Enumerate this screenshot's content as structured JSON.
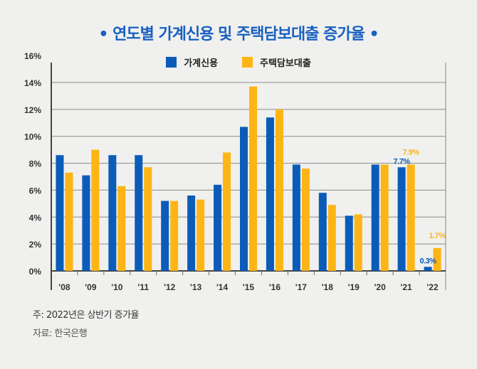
{
  "title": "• 연도별 가계신용 및 주택담보대출 증가율 •",
  "colors": {
    "household_credit": "#0a5cb8",
    "mortgage": "#fdb515",
    "title": "#1860c0"
  },
  "chart_data": {
    "type": "bar",
    "title": "연도별 가계신용 및 주택담보대출 증가율",
    "categories": [
      "'08",
      "'09",
      "'10",
      "'11",
      "'12",
      "'13",
      "'14",
      "'15",
      "'16",
      "'17",
      "'18",
      "'19",
      "'20",
      "'21",
      "'22"
    ],
    "series": [
      {
        "name": "가계신용",
        "color": "#0a5cb8",
        "values": [
          8.6,
          7.1,
          8.6,
          8.6,
          5.2,
          5.6,
          6.4,
          10.7,
          11.4,
          7.9,
          5.8,
          4.1,
          7.9,
          7.7,
          0.3
        ]
      },
      {
        "name": "주택담보대출",
        "color": "#fdb515",
        "values": [
          7.3,
          9.0,
          6.3,
          7.7,
          5.2,
          5.3,
          8.8,
          13.7,
          12.0,
          7.6,
          4.9,
          4.2,
          7.9,
          7.9,
          1.7
        ]
      }
    ],
    "yticks": [
      "0%",
      "2%",
      "4%",
      "6%",
      "8%",
      "10%",
      "12%",
      "14%",
      "16%"
    ],
    "ylim": [
      0,
      16
    ],
    "grid": true,
    "legend": "top",
    "annotations": [
      {
        "category": "'21",
        "series": "가계신용",
        "text": "7.7%"
      },
      {
        "category": "'21",
        "series": "주택담보대출",
        "text": "7.9%"
      },
      {
        "category": "'22",
        "series": "가계신용",
        "text": "0.3%"
      },
      {
        "category": "'22",
        "series": "주택담보대출",
        "text": "1.7%"
      }
    ]
  },
  "notes": {
    "note": "주: 2022년은 상반기 증가율",
    "source": "자료: 한국은행"
  }
}
